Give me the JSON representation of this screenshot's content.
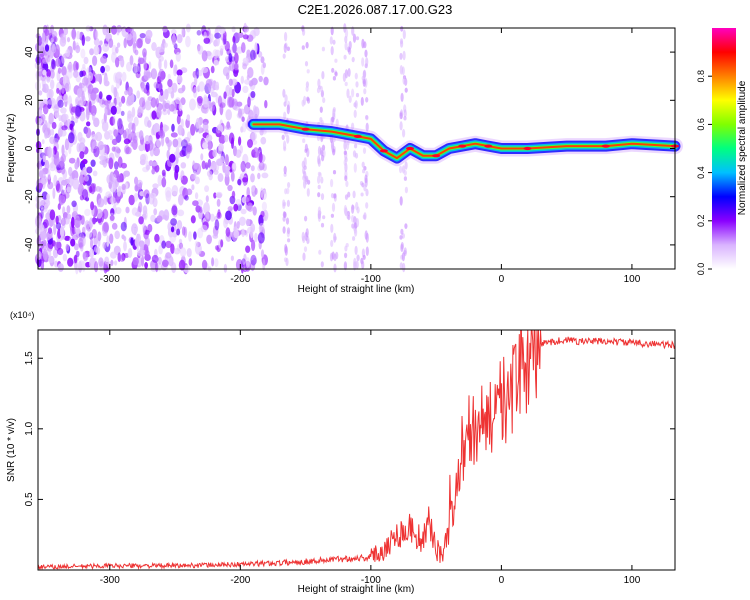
{
  "title": "C2E1.2026.087.17.00.G23",
  "chart_data": [
    {
      "type": "heatmap",
      "name": "spectrogram",
      "xlabel": "Height of straight line (km)",
      "ylabel": "Frequency (Hz)",
      "xlim": [
        -355,
        133
      ],
      "ylim": [
        -50,
        50
      ],
      "x_ticks": [
        -300,
        -200,
        -100,
        0,
        100
      ],
      "y_ticks": [
        -40,
        -20,
        0,
        20,
        40
      ],
      "colorbar": {
        "label": "Normalized spectral amplitude",
        "range": [
          0,
          1
        ],
        "ticks": [
          0.0,
          0.2,
          0.4,
          0.6,
          0.8
        ],
        "colormap": [
          "#ffffff",
          "#d9b3ff",
          "#8a00ff",
          "#0000ff",
          "#00c0ff",
          "#00ff80",
          "#80ff00",
          "#ffff00",
          "#ff8000",
          "#ff0000",
          "#ff00c0"
        ]
      },
      "ridge": {
        "description": "dominant frequency trace",
        "points": [
          [
            -190,
            10
          ],
          [
            -170,
            10
          ],
          [
            -150,
            8
          ],
          [
            -130,
            7
          ],
          [
            -110,
            5
          ],
          [
            -100,
            4
          ],
          [
            -90,
            -1
          ],
          [
            -80,
            -4
          ],
          [
            -70,
            0
          ],
          [
            -60,
            -3
          ],
          [
            -50,
            -3
          ],
          [
            -40,
            0
          ],
          [
            -30,
            1
          ],
          [
            -20,
            2
          ],
          [
            -10,
            1
          ],
          [
            0,
            0
          ],
          [
            20,
            0
          ],
          [
            50,
            1
          ],
          [
            80,
            1
          ],
          [
            100,
            2
          ],
          [
            133,
            1
          ]
        ]
      }
    },
    {
      "type": "line",
      "name": "snr",
      "xlabel": "Height of straight line (km)",
      "ylabel": "SNR (10 * v/v)",
      "y_multiplier": "(x10⁴)",
      "xlim": [
        -355,
        133
      ],
      "ylim": [
        0,
        1.7
      ],
      "x_ticks": [
        -300,
        -200,
        -100,
        0,
        100
      ],
      "y_ticks": [
        0.5,
        1.0,
        1.5
      ],
      "color": "#ee3333",
      "series": [
        {
          "name": "SNR",
          "x": [
            -355,
            -300,
            -250,
            -200,
            -170,
            -150,
            -120,
            -100,
            -90,
            -80,
            -70,
            -60,
            -55,
            -50,
            -45,
            -40,
            -35,
            -30,
            -25,
            -20,
            -15,
            -10,
            -5,
            0,
            5,
            10,
            15,
            20,
            25,
            30,
            40,
            50,
            60,
            80,
            100,
            120,
            133
          ],
          "y": [
            0.02,
            0.03,
            0.03,
            0.04,
            0.05,
            0.06,
            0.08,
            0.09,
            0.15,
            0.25,
            0.3,
            0.2,
            0.35,
            0.15,
            0.1,
            0.3,
            0.55,
            0.75,
            0.9,
            1.0,
            1.05,
            1.1,
            1.15,
            1.2,
            1.2,
            1.3,
            1.4,
            1.5,
            1.55,
            1.6,
            1.62,
            1.63,
            1.62,
            1.62,
            1.61,
            1.6,
            1.59
          ]
        }
      ]
    }
  ]
}
